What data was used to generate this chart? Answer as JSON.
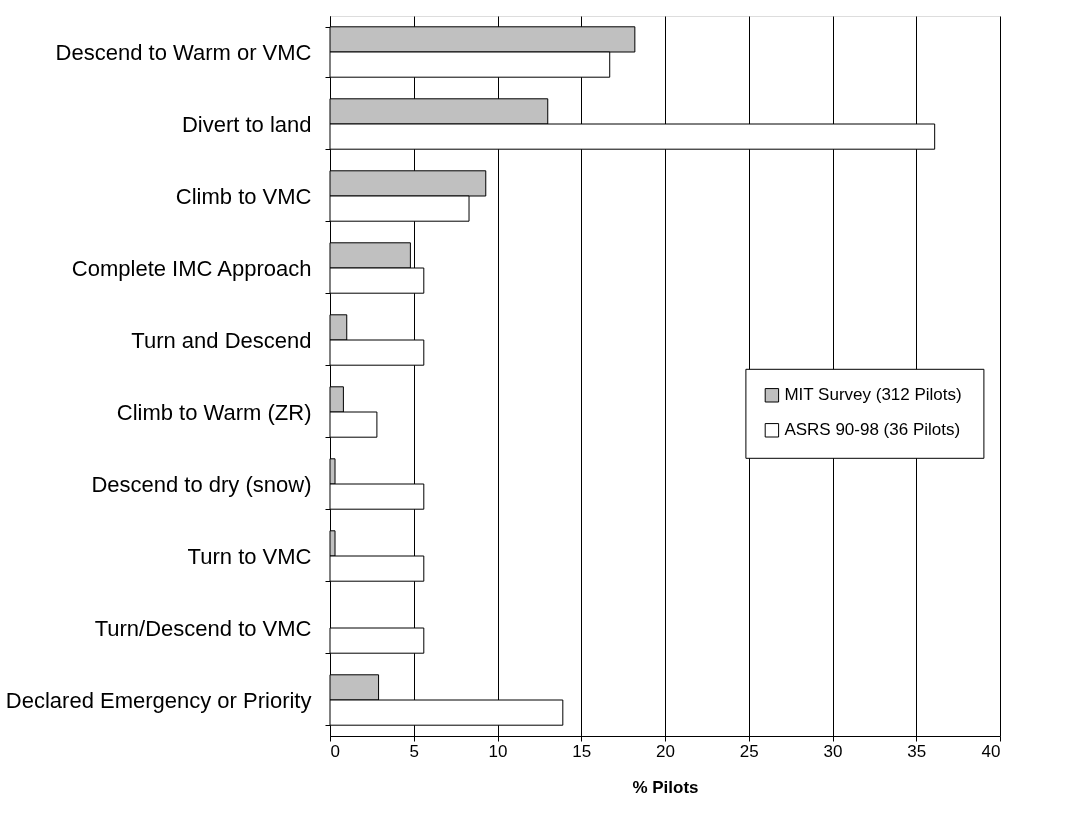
{
  "chart_data": {
    "type": "bar",
    "orientation": "horizontal",
    "xlabel": "% Pilots",
    "categories": [
      "Descend to Warm or VMC",
      "Divert to land",
      "Climb to VMC",
      "Complete IMC Approach",
      "Turn and Descend",
      "Climb to Warm (ZR)",
      "Descend to dry (snow)",
      "Turn to VMC",
      "Turn/Descend to VMC",
      "Declared Emergency or Priority"
    ],
    "series": [
      {
        "name": "MIT Survey (312 Pilots)",
        "color": "#c0c0c0",
        "values": [
          18.2,
          13.0,
          9.3,
          4.8,
          1.0,
          0.8,
          0.3,
          0.3,
          null,
          2.9
        ]
      },
      {
        "name": "ASRS 90-98  (36 Pilots)",
        "color": "#ffffff",
        "values": [
          16.7,
          36.1,
          8.3,
          5.6,
          5.6,
          2.8,
          5.6,
          5.6,
          5.6,
          13.9
        ]
      }
    ],
    "xlim": [
      0,
      40
    ],
    "xticks": [
      0,
      5,
      10,
      15,
      20,
      25,
      30,
      35,
      40
    ],
    "grid": "x",
    "legend": "right"
  }
}
